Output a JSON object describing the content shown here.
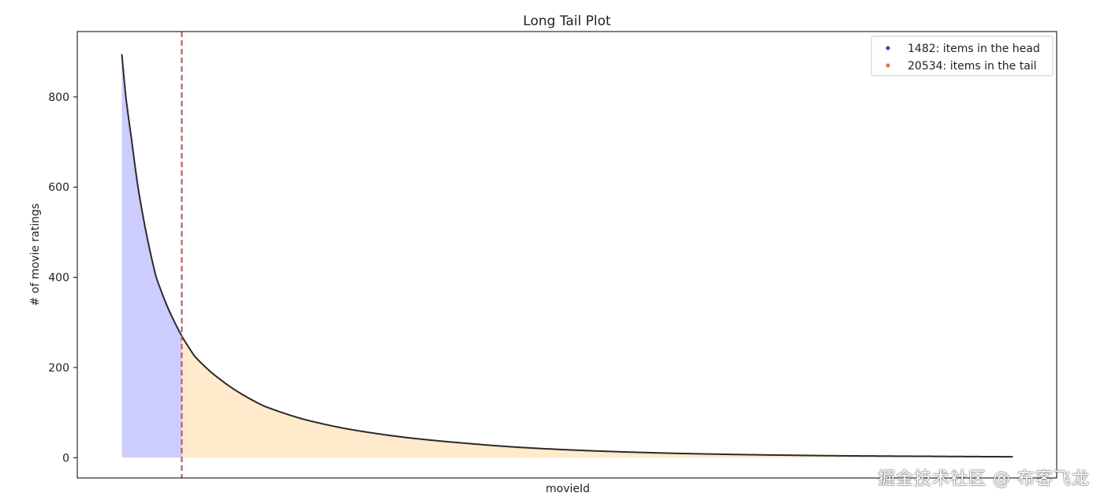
{
  "chart_data": {
    "type": "area",
    "title": "Long Tail Plot",
    "xlabel": "movieId",
    "ylabel": "# of movie ratings",
    "yticks": [
      0,
      200,
      400,
      600,
      800
    ],
    "ylim": [
      -45,
      945
    ],
    "xlim": [
      -1100,
      23100
    ],
    "head_count": 1482,
    "tail_count": 20534,
    "total_items": 22016,
    "cutoff_rank": 1482,
    "cutoff_value": 270,
    "curve": [
      {
        "x": 0,
        "y": 895
      },
      {
        "x": 100,
        "y": 800
      },
      {
        "x": 250,
        "y": 700
      },
      {
        "x": 400,
        "y": 600
      },
      {
        "x": 600,
        "y": 500
      },
      {
        "x": 850,
        "y": 400
      },
      {
        "x": 1150,
        "y": 330
      },
      {
        "x": 1482,
        "y": 270
      },
      {
        "x": 1800,
        "y": 225
      },
      {
        "x": 2200,
        "y": 190
      },
      {
        "x": 2800,
        "y": 150
      },
      {
        "x": 3500,
        "y": 115
      },
      {
        "x": 4500,
        "y": 85
      },
      {
        "x": 5500,
        "y": 65
      },
      {
        "x": 7000,
        "y": 45
      },
      {
        "x": 8500,
        "y": 32
      },
      {
        "x": 10000,
        "y": 22
      },
      {
        "x": 12000,
        "y": 14
      },
      {
        "x": 14000,
        "y": 9
      },
      {
        "x": 16000,
        "y": 6
      },
      {
        "x": 18000,
        "y": 4
      },
      {
        "x": 20000,
        "y": 3
      },
      {
        "x": 22016,
        "y": 2
      }
    ],
    "legend": {
      "placement": "top-right",
      "entries": [
        {
          "label": "1482: items in the head",
          "color": "#3f3fa0"
        },
        {
          "label": "20534: items in the tail",
          "color": "#e06a5a"
        }
      ]
    },
    "colors": {
      "head_fill": "#ccccff",
      "tail_fill": "#ffeacc",
      "curve": "#2a2a2a",
      "cutoff_line": "#c0504d"
    },
    "grid": false
  },
  "watermark": "掘金技术社区 @ 布客飞龙"
}
